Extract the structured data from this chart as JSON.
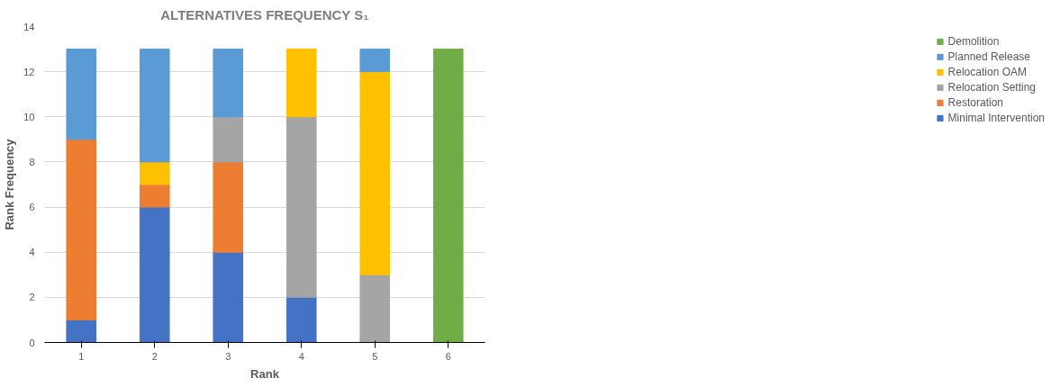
{
  "chart_data": {
    "type": "bar",
    "stacked": true,
    "title": "ALTERNATIVES FREQUENCY S₁",
    "xlabel": "Rank",
    "ylabel": "Rank Frequency",
    "categories": [
      "1",
      "2",
      "3",
      "4",
      "5",
      "6"
    ],
    "series": [
      {
        "name": "Minimal Intervention",
        "color": "#4472c4",
        "values": [
          1,
          6,
          4,
          2,
          null,
          null
        ]
      },
      {
        "name": "Restoration",
        "color": "#ed7d31",
        "values": [
          8,
          1,
          4,
          null,
          null,
          null
        ]
      },
      {
        "name": "Relocation Setting",
        "color": "#a5a5a5",
        "values": [
          null,
          null,
          2,
          8,
          3,
          null
        ]
      },
      {
        "name": "Relocation OAM",
        "color": "#ffc000",
        "values": [
          null,
          1,
          null,
          3,
          9,
          null
        ]
      },
      {
        "name": "Planned Release",
        "color": "#5b9bd5",
        "values": [
          4,
          5,
          3,
          null,
          1,
          null
        ]
      },
      {
        "name": "Demolition",
        "color": "#70ad47",
        "values": [
          null,
          null,
          null,
          null,
          null,
          13
        ]
      }
    ],
    "ylim": [
      0,
      14
    ],
    "yticks": [
      0,
      2,
      4,
      6,
      8,
      10,
      12,
      14
    ],
    "grid": "y",
    "legend": "right"
  }
}
